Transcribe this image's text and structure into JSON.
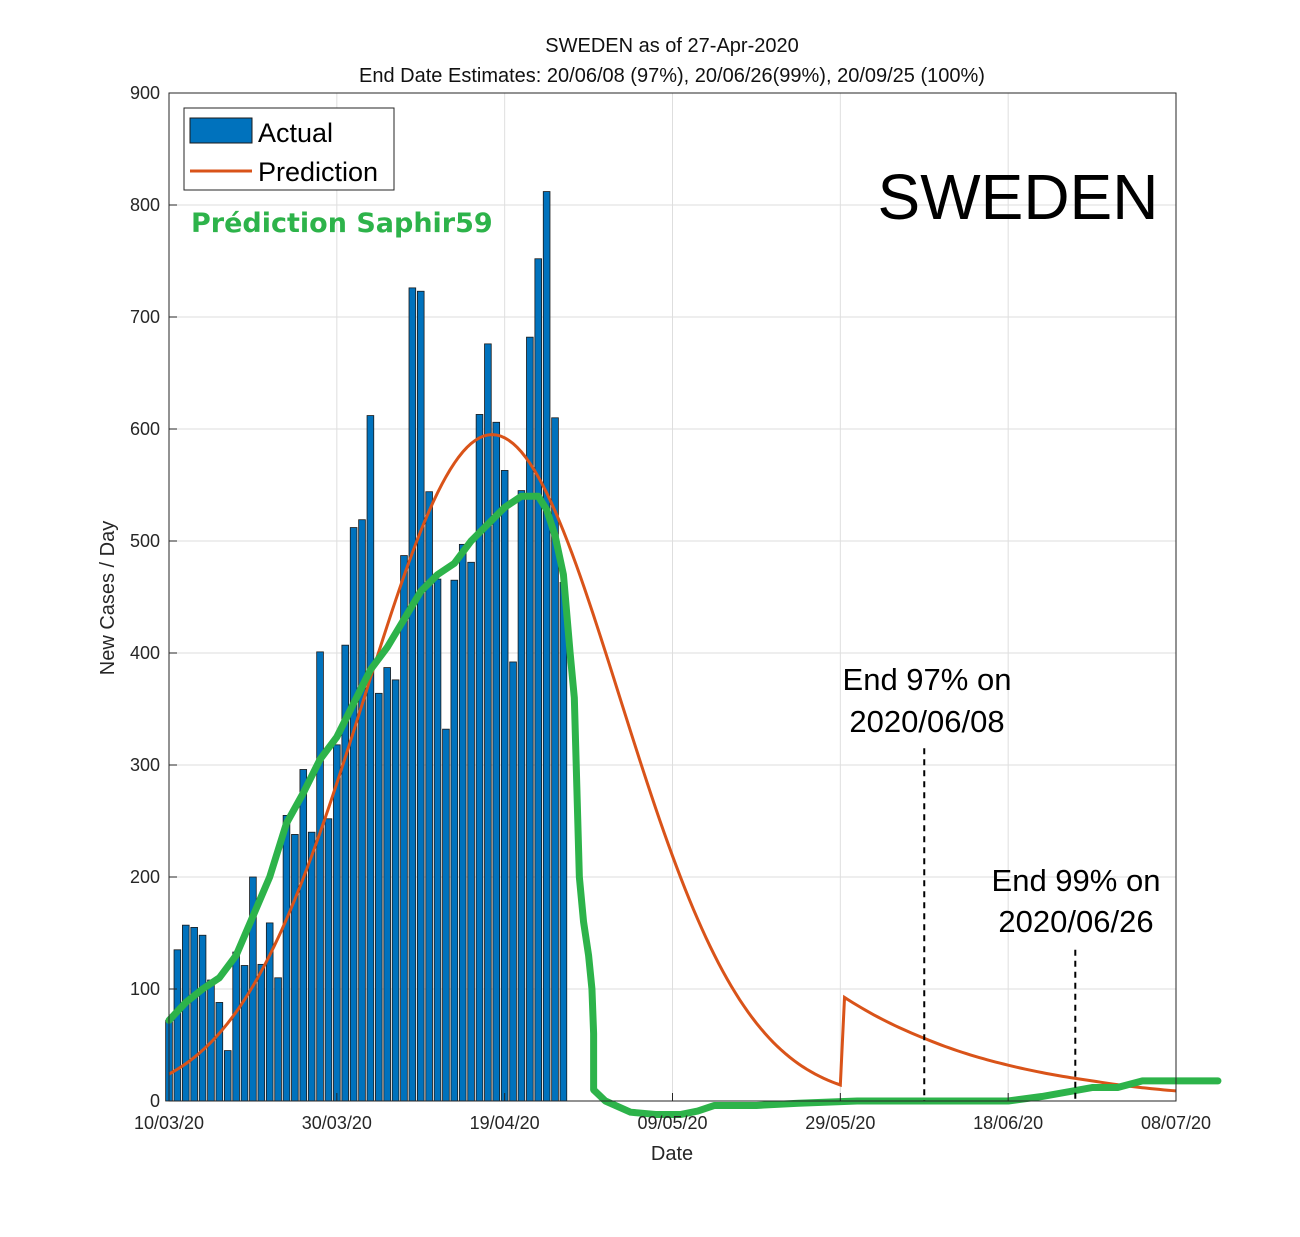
{
  "chart_data": {
    "type": "bar",
    "title": "SWEDEN as of 27-Apr-2020",
    "subtitle": "End Date Estimates: 20/06/08 (97%), 20/06/26(99%), 20/09/25 (100%)",
    "xlabel": "Date",
    "ylabel": "New Cases / Day",
    "ylim": [
      0,
      900
    ],
    "xlim_days": [
      0,
      120
    ],
    "y_ticks": [
      0,
      100,
      200,
      300,
      400,
      500,
      600,
      700,
      800,
      900
    ],
    "x_ticks": [
      {
        "day": 0,
        "label": "10/03/20"
      },
      {
        "day": 20,
        "label": "30/03/20"
      },
      {
        "day": 40,
        "label": "19/04/20"
      },
      {
        "day": 60,
        "label": "09/05/20"
      },
      {
        "day": 80,
        "label": "29/05/20"
      },
      {
        "day": 100,
        "label": "18/06/20"
      },
      {
        "day": 120,
        "label": "08/07/20"
      }
    ],
    "grid": true,
    "legend": {
      "position": "top-left",
      "entries": [
        {
          "name": "Actual",
          "style": "bar",
          "color": "#0072bd"
        },
        {
          "name": "Prediction",
          "style": "line",
          "color": "#d95319"
        }
      ]
    },
    "actual_start_day": 0,
    "actual": [
      72,
      135,
      157,
      155,
      148,
      108,
      88,
      45,
      133,
      121,
      200,
      122,
      159,
      110,
      255,
      238,
      296,
      240,
      401,
      252,
      318,
      407,
      512,
      519,
      612,
      364,
      387,
      376,
      487,
      726,
      723,
      544,
      466,
      332,
      465,
      497,
      481,
      613,
      676,
      606,
      563,
      392,
      545,
      682,
      752,
      812,
      610,
      463
    ],
    "prediction_curve": {
      "model": "gaussian",
      "peak_day": 38.5,
      "peak_value": 595,
      "sigma_days": 15.2,
      "tail_points": [
        {
          "day": 80,
          "value": 95
        },
        {
          "day": 90,
          "value": 56
        },
        {
          "day": 100,
          "value": 32
        },
        {
          "day": 110,
          "value": 18
        },
        {
          "day": 120,
          "value": 9
        }
      ]
    },
    "overlay_series": {
      "name": "Prédiction Saphir59",
      "color": "#2db34a",
      "points": [
        [
          0,
          72
        ],
        [
          2,
          88
        ],
        [
          4,
          100
        ],
        [
          6,
          110
        ],
        [
          8,
          130
        ],
        [
          10,
          165
        ],
        [
          12,
          200
        ],
        [
          14,
          248
        ],
        [
          16,
          275
        ],
        [
          18,
          305
        ],
        [
          20,
          325
        ],
        [
          22,
          355
        ],
        [
          24,
          385
        ],
        [
          26,
          405
        ],
        [
          28,
          430
        ],
        [
          30,
          455
        ],
        [
          32,
          470
        ],
        [
          34,
          480
        ],
        [
          36,
          500
        ],
        [
          38,
          515
        ],
        [
          40,
          530
        ],
        [
          42,
          540
        ],
        [
          44,
          540
        ],
        [
          45,
          528
        ],
        [
          46,
          505
        ],
        [
          47,
          470
        ],
        [
          47.8,
          400
        ],
        [
          48.3,
          360
        ],
        [
          48.6,
          280
        ],
        [
          48.9,
          200
        ],
        [
          49.4,
          160
        ],
        [
          50,
          130
        ],
        [
          50.4,
          100
        ],
        [
          50.6,
          60
        ],
        [
          50.6,
          10
        ],
        [
          52,
          0
        ],
        [
          55,
          -10
        ],
        [
          58,
          -12
        ],
        [
          61,
          -12
        ],
        [
          63,
          -9
        ],
        [
          65,
          -4
        ],
        [
          70,
          -4
        ],
        [
          75,
          -2
        ],
        [
          82,
          0
        ],
        [
          90,
          0
        ],
        [
          100,
          0
        ],
        [
          104,
          4
        ],
        [
          107,
          8
        ],
        [
          110,
          12
        ],
        [
          113,
          12
        ],
        [
          116,
          18
        ],
        [
          120,
          18
        ],
        [
          125,
          18
        ]
      ]
    },
    "annotations": [
      {
        "line1": "End 97% on",
        "line2": "2020/06/08",
        "day": 90,
        "value": 315
      },
      {
        "line1": "End 99% on",
        "line2": "2020/06/26",
        "day": 108,
        "value": 135
      }
    ],
    "country_label": "SWEDEN"
  }
}
